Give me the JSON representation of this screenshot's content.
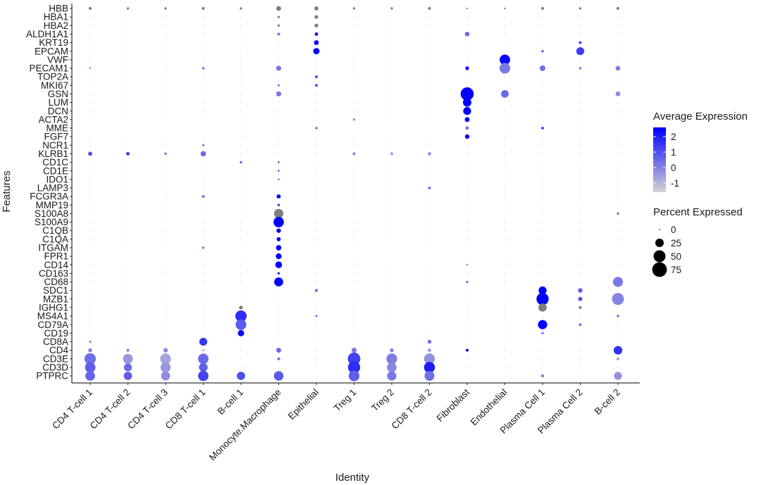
{
  "chart_data": {
    "type": "dotplot",
    "xlabel": "Identity",
    "ylabel": "Features",
    "identities": [
      "CD4 T-cell 1",
      "CD4 T-cell 2",
      "CD4 T-cell 3",
      "CD8 T-cell 1",
      "B-cell 1",
      "Monocyte.Macrophage",
      "Epithelial",
      "Treg 1",
      "Treg 2",
      "CD8 T-cell 2",
      "Fibroblast",
      "Endothelial",
      "Plasma Cell 1",
      "Plasma Cell 2",
      "B-cell 2"
    ],
    "features": [
      "HBB",
      "HBA1",
      "HBA2",
      "ALDH1A1",
      "KRT19",
      "EPCAM",
      "VWF",
      "PECAM1",
      "TOP2A",
      "MKI67",
      "GSN",
      "LUM",
      "DCN",
      "ACTA2",
      "MME",
      "FGF7",
      "NCR1",
      "KLRB1",
      "CD1C",
      "CD1E",
      "IDO1",
      "LAMP3",
      "FCGR3A",
      "MMP19",
      "S100A8",
      "S100A9",
      "C1QB",
      "C1QA",
      "ITGAM",
      "FPR1",
      "CD14",
      "CD163",
      "CD68",
      "SDC1",
      "MZB1",
      "IGHG1",
      "MS4A1",
      "CD79A",
      "CD19",
      "CD8A",
      "CD4",
      "CD3E",
      "CD3D",
      "PTPRC"
    ],
    "points": [
      {
        "f": "HBB",
        "i": "CD4 T-cell 1",
        "pct": 3,
        "avg": null
      },
      {
        "f": "HBB",
        "i": "CD4 T-cell 2",
        "pct": 2,
        "avg": null
      },
      {
        "f": "HBB",
        "i": "CD4 T-cell 3",
        "pct": 2,
        "avg": null
      },
      {
        "f": "HBB",
        "i": "CD8 T-cell 1",
        "pct": 3,
        "avg": null
      },
      {
        "f": "HBB",
        "i": "B-cell 1",
        "pct": 2,
        "avg": null
      },
      {
        "f": "HBB",
        "i": "Monocyte.Macrophage",
        "pct": 8,
        "avg": null
      },
      {
        "f": "HBB",
        "i": "Epithelial",
        "pct": 6,
        "avg": null
      },
      {
        "f": "HBB",
        "i": "Treg 1",
        "pct": 2,
        "avg": null
      },
      {
        "f": "HBB",
        "i": "Treg 2",
        "pct": 2,
        "avg": null
      },
      {
        "f": "HBB",
        "i": "CD8 T-cell 2",
        "pct": 3,
        "avg": null
      },
      {
        "f": "HBB",
        "i": "Fibroblast",
        "pct": 1,
        "avg": null
      },
      {
        "f": "HBB",
        "i": "Endothelial",
        "pct": 1,
        "avg": null
      },
      {
        "f": "HBB",
        "i": "Plasma Cell 1",
        "pct": 3,
        "avg": null
      },
      {
        "f": "HBB",
        "i": "Plasma Cell 2",
        "pct": 2,
        "avg": null
      },
      {
        "f": "HBB",
        "i": "B-cell 2",
        "pct": 3,
        "avg": null
      },
      {
        "f": "HBA1",
        "i": "Monocyte.Macrophage",
        "pct": 2,
        "avg": null
      },
      {
        "f": "HBA1",
        "i": "Epithelial",
        "pct": 5,
        "avg": null
      },
      {
        "f": "HBA2",
        "i": "Monocyte.Macrophage",
        "pct": 2,
        "avg": null
      },
      {
        "f": "HBA2",
        "i": "Epithelial",
        "pct": 5,
        "avg": null
      },
      {
        "f": "ALDH1A1",
        "i": "Monocyte.Macrophage",
        "pct": 3,
        "avg": 0.3
      },
      {
        "f": "ALDH1A1",
        "i": "Epithelial",
        "pct": 4,
        "avg": 2.4
      },
      {
        "f": "ALDH1A1",
        "i": "Fibroblast",
        "pct": 7,
        "avg": 0.6
      },
      {
        "f": "KRT19",
        "i": "Epithelial",
        "pct": 8,
        "avg": 2.6
      },
      {
        "f": "KRT19",
        "i": "Plasma Cell 2",
        "pct": 3,
        "avg": 1.2
      },
      {
        "f": "EPCAM",
        "i": "Epithelial",
        "pct": 14,
        "avg": 2.6
      },
      {
        "f": "EPCAM",
        "i": "Plasma Cell 1",
        "pct": 2,
        "avg": 0.8
      },
      {
        "f": "EPCAM",
        "i": "Plasma Cell 2",
        "pct": 22,
        "avg": 1.4
      },
      {
        "f": "VWF",
        "i": "Endothelial",
        "pct": 38,
        "avg": 2.5
      },
      {
        "f": "PECAM1",
        "i": "CD4 T-cell 1",
        "pct": 1,
        "avg": 0.2
      },
      {
        "f": "PECAM1",
        "i": "CD8 T-cell 1",
        "pct": 2,
        "avg": 0.5
      },
      {
        "f": "PECAM1",
        "i": "Monocyte.Macrophage",
        "pct": 9,
        "avg": 0.2
      },
      {
        "f": "PECAM1",
        "i": "Fibroblast",
        "pct": 5,
        "avg": 2.3
      },
      {
        "f": "PECAM1",
        "i": "Endothelial",
        "pct": 40,
        "avg": 0.2
      },
      {
        "f": "PECAM1",
        "i": "Plasma Cell 1",
        "pct": 11,
        "avg": 0.4
      },
      {
        "f": "PECAM1",
        "i": "Plasma Cell 2",
        "pct": 2,
        "avg": 0.3
      },
      {
        "f": "PECAM1",
        "i": "B-cell 2",
        "pct": 8,
        "avg": 0.1
      },
      {
        "f": "TOP2A",
        "i": "Epithelial",
        "pct": 3,
        "avg": 0.8
      },
      {
        "f": "MKI67",
        "i": "Monocyte.Macrophage",
        "pct": 1,
        "avg": 2.0
      },
      {
        "f": "MKI67",
        "i": "Epithelial",
        "pct": 3,
        "avg": 0.9
      },
      {
        "f": "GSN",
        "i": "Monocyte.Macrophage",
        "pct": 9,
        "avg": 0.2
      },
      {
        "f": "GSN",
        "i": "Fibroblast",
        "pct": 60,
        "avg": 2.6
      },
      {
        "f": "GSN",
        "i": "Endothelial",
        "pct": 20,
        "avg": 0.5
      },
      {
        "f": "GSN",
        "i": "B-cell 2",
        "pct": 8,
        "avg": -0.1
      },
      {
        "f": "LUM",
        "i": "Fibroblast",
        "pct": 25,
        "avg": 2.6
      },
      {
        "f": "DCN",
        "i": "Fibroblast",
        "pct": 22,
        "avg": 2.6
      },
      {
        "f": "ACTA2",
        "i": "Treg 1",
        "pct": 2,
        "avg": -0.3
      },
      {
        "f": "ACTA2",
        "i": "Fibroblast",
        "pct": 8,
        "avg": 2.6
      },
      {
        "f": "MME",
        "i": "Epithelial",
        "pct": 2,
        "avg": 0.5
      },
      {
        "f": "MME",
        "i": "Fibroblast",
        "pct": 4,
        "avg": 0.3
      },
      {
        "f": "MME",
        "i": "Plasma Cell 1",
        "pct": 2,
        "avg": 2.0
      },
      {
        "f": "FGF7",
        "i": "Fibroblast",
        "pct": 7,
        "avg": 2.6
      },
      {
        "f": "NCR1",
        "i": "CD8 T-cell 1",
        "pct": 1,
        "avg": 2.0
      },
      {
        "f": "KLRB1",
        "i": "CD4 T-cell 1",
        "pct": 6,
        "avg": 1.0
      },
      {
        "f": "KLRB1",
        "i": "CD4 T-cell 2",
        "pct": 4,
        "avg": 1.6
      },
      {
        "f": "KLRB1",
        "i": "CD4 T-cell 3",
        "pct": 2,
        "avg": 0.4
      },
      {
        "f": "KLRB1",
        "i": "CD8 T-cell 1",
        "pct": 10,
        "avg": 0.5
      },
      {
        "f": "KLRB1",
        "i": "Treg 1",
        "pct": 3,
        "avg": 0.0
      },
      {
        "f": "KLRB1",
        "i": "Treg 2",
        "pct": 3,
        "avg": -0.5
      },
      {
        "f": "KLRB1",
        "i": "CD8 T-cell 2",
        "pct": 4,
        "avg": -0.3
      },
      {
        "f": "CD1C",
        "i": "B-cell 1",
        "pct": 2,
        "avg": 0.9
      },
      {
        "f": "CD1C",
        "i": "Monocyte.Macrophage",
        "pct": 1,
        "avg": 2.0
      },
      {
        "f": "CD1E",
        "i": "Monocyte.Macrophage",
        "pct": 1,
        "avg": 2.0
      },
      {
        "f": "IDO1",
        "i": "Monocyte.Macrophage",
        "pct": 1,
        "avg": 1.2
      },
      {
        "f": "LAMP3",
        "i": "CD8 T-cell 2",
        "pct": 3,
        "avg": 0.3
      },
      {
        "f": "FCGR3A",
        "i": "CD8 T-cell 1",
        "pct": 3,
        "avg": 0.3
      },
      {
        "f": "FCGR3A",
        "i": "Monocyte.Macrophage",
        "pct": 6,
        "avg": 2.5
      },
      {
        "f": "MMP19",
        "i": "Monocyte.Macrophage",
        "pct": 2,
        "avg": 1.5
      },
      {
        "f": "S100A8",
        "i": "Monocyte.Macrophage",
        "pct": 30,
        "avg": null
      },
      {
        "f": "S100A8",
        "i": "B-cell 2",
        "pct": 2,
        "avg": null
      },
      {
        "f": "S100A9",
        "i": "Monocyte.Macrophage",
        "pct": 38,
        "avg": 2.6
      },
      {
        "f": "C1QB",
        "i": "Monocyte.Macrophage",
        "pct": 7,
        "avg": 2.6
      },
      {
        "f": "C1QA",
        "i": "Monocyte.Macrophage",
        "pct": 6,
        "avg": 2.6
      },
      {
        "f": "ITGAM",
        "i": "CD8 T-cell 1",
        "pct": 2,
        "avg": 0.3
      },
      {
        "f": "ITGAM",
        "i": "Monocyte.Macrophage",
        "pct": 10,
        "avg": 2.5
      },
      {
        "f": "FPR1",
        "i": "Monocyte.Macrophage",
        "pct": 12,
        "avg": 2.5
      },
      {
        "f": "CD14",
        "i": "Monocyte.Macrophage",
        "pct": 16,
        "avg": 2.5
      },
      {
        "f": "CD14",
        "i": "Fibroblast",
        "pct": 1,
        "avg": 0.3
      },
      {
        "f": "CD163",
        "i": "Monocyte.Macrophage",
        "pct": 2,
        "avg": 2.0
      },
      {
        "f": "CD68",
        "i": "Monocyte.Macrophage",
        "pct": 28,
        "avg": 2.5
      },
      {
        "f": "CD68",
        "i": "Fibroblast",
        "pct": 2,
        "avg": 0.2
      },
      {
        "f": "CD68",
        "i": "B-cell 2",
        "pct": 35,
        "avg": 0.2
      },
      {
        "f": "SDC1",
        "i": "Epithelial",
        "pct": 3,
        "avg": 0.5
      },
      {
        "f": "SDC1",
        "i": "Plasma Cell 1",
        "pct": 22,
        "avg": 2.6
      },
      {
        "f": "SDC1",
        "i": "Plasma Cell 2",
        "pct": 7,
        "avg": 0.8
      },
      {
        "f": "MZB1",
        "i": "Plasma Cell 1",
        "pct": 52,
        "avg": 2.6
      },
      {
        "f": "MZB1",
        "i": "Plasma Cell 2",
        "pct": 6,
        "avg": 1.0
      },
      {
        "f": "MZB1",
        "i": "B-cell 2",
        "pct": 50,
        "avg": 0.0
      },
      {
        "f": "IGHG1",
        "i": "B-cell 1",
        "pct": 5,
        "avg": null
      },
      {
        "f": "IGHG1",
        "i": "Plasma Cell 1",
        "pct": 24,
        "avg": null
      },
      {
        "f": "IGHG1",
        "i": "Plasma Cell 2",
        "pct": 3,
        "avg": null
      },
      {
        "f": "MS4A1",
        "i": "B-cell 1",
        "pct": 45,
        "avg": 1.7
      },
      {
        "f": "MS4A1",
        "i": "Epithelial",
        "pct": 1,
        "avg": 2.0
      },
      {
        "f": "MS4A1",
        "i": "B-cell 2",
        "pct": 2,
        "avg": 0.5
      },
      {
        "f": "CD79A",
        "i": "B-cell 1",
        "pct": 40,
        "avg": 0.8
      },
      {
        "f": "CD79A",
        "i": "Plasma Cell 1",
        "pct": 30,
        "avg": 2.6
      },
      {
        "f": "CD79A",
        "i": "Plasma Cell 2",
        "pct": 3,
        "avg": 0.3
      },
      {
        "f": "CD19",
        "i": "B-cell 1",
        "pct": 14,
        "avg": 2.4
      },
      {
        "f": "CD19",
        "i": "Plasma Cell 1",
        "pct": 2,
        "avg": 0.3
      },
      {
        "f": "CD8A",
        "i": "CD4 T-cell 1",
        "pct": 2,
        "avg": -0.2
      },
      {
        "f": "CD8A",
        "i": "CD8 T-cell 1",
        "pct": 22,
        "avg": 1.5
      },
      {
        "f": "CD8A",
        "i": "CD8 T-cell 2",
        "pct": 5,
        "avg": 0.4
      },
      {
        "f": "CD4",
        "i": "CD4 T-cell 1",
        "pct": 5,
        "avg": 0.1
      },
      {
        "f": "CD4",
        "i": "CD4 T-cell 2",
        "pct": 3,
        "avg": 0.1
      },
      {
        "f": "CD4",
        "i": "CD4 T-cell 3",
        "pct": 7,
        "avg": -0.2
      },
      {
        "f": "CD4",
        "i": "CD8 T-cell 1",
        "pct": 1,
        "avg": 0.0
      },
      {
        "f": "CD4",
        "i": "Monocyte.Macrophage",
        "pct": 8,
        "avg": 0.6
      },
      {
        "f": "CD4",
        "i": "Treg 1",
        "pct": 9,
        "avg": 0.2
      },
      {
        "f": "CD4",
        "i": "Treg 2",
        "pct": 5,
        "avg": 0.0
      },
      {
        "f": "CD4",
        "i": "CD8 T-cell 2",
        "pct": 4,
        "avg": -0.4
      },
      {
        "f": "CD4",
        "i": "Fibroblast",
        "pct": 3,
        "avg": 2.4
      },
      {
        "f": "CD4",
        "i": "B-cell 2",
        "pct": 26,
        "avg": 1.6
      },
      {
        "f": "CD3E",
        "i": "CD4 T-cell 1",
        "pct": 45,
        "avg": 0.4
      },
      {
        "f": "CD3E",
        "i": "CD4 T-cell 2",
        "pct": 34,
        "avg": -0.4
      },
      {
        "f": "CD3E",
        "i": "CD4 T-cell 3",
        "pct": 40,
        "avg": -0.7
      },
      {
        "f": "CD3E",
        "i": "CD8 T-cell 1",
        "pct": 38,
        "avg": 0.5
      },
      {
        "f": "CD3E",
        "i": "Monocyte.Macrophage",
        "pct": 3,
        "avg": 0.3
      },
      {
        "f": "CD3E",
        "i": "Treg 1",
        "pct": 55,
        "avg": 1.3
      },
      {
        "f": "CD3E",
        "i": "Treg 2",
        "pct": 40,
        "avg": 0.1
      },
      {
        "f": "CD3E",
        "i": "CD8 T-cell 2",
        "pct": 40,
        "avg": -0.3
      },
      {
        "f": "CD3E",
        "i": "B-cell 2",
        "pct": 3,
        "avg": -0.6
      },
      {
        "f": "CD3D",
        "i": "CD4 T-cell 1",
        "pct": 38,
        "avg": 0.7
      },
      {
        "f": "CD3D",
        "i": "CD4 T-cell 2",
        "pct": 22,
        "avg": 0.5
      },
      {
        "f": "CD3D",
        "i": "CD4 T-cell 3",
        "pct": 36,
        "avg": -0.4
      },
      {
        "f": "CD3D",
        "i": "CD8 T-cell 1",
        "pct": 26,
        "avg": 0.7
      },
      {
        "f": "CD3D",
        "i": "Treg 1",
        "pct": 52,
        "avg": 1.7
      },
      {
        "f": "CD3D",
        "i": "Treg 2",
        "pct": 32,
        "avg": -0.1
      },
      {
        "f": "CD3D",
        "i": "CD8 T-cell 2",
        "pct": 42,
        "avg": 2.0
      },
      {
        "f": "PTPRC",
        "i": "CD4 T-cell 1",
        "pct": 33,
        "avg": 0.6
      },
      {
        "f": "PTPRC",
        "i": "CD4 T-cell 2",
        "pct": 24,
        "avg": 0.7
      },
      {
        "f": "PTPRC",
        "i": "CD4 T-cell 3",
        "pct": 28,
        "avg": -0.2
      },
      {
        "f": "PTPRC",
        "i": "CD8 T-cell 1",
        "pct": 38,
        "avg": 1.2
      },
      {
        "f": "PTPRC",
        "i": "B-cell 1",
        "pct": 24,
        "avg": 1.0
      },
      {
        "f": "PTPRC",
        "i": "Monocyte.Macrophage",
        "pct": 32,
        "avg": 0.8
      },
      {
        "f": "PTPRC",
        "i": "Treg 1",
        "pct": 40,
        "avg": 0.7
      },
      {
        "f": "PTPRC",
        "i": "Treg 2",
        "pct": 30,
        "avg": 0.2
      },
      {
        "f": "PTPRC",
        "i": "CD8 T-cell 2",
        "pct": 34,
        "avg": 0.4
      },
      {
        "f": "PTPRC",
        "i": "Plasma Cell 1",
        "pct": 3,
        "avg": 0.2
      },
      {
        "f": "PTPRC",
        "i": "B-cell 2",
        "pct": 22,
        "avg": -0.3
      }
    ],
    "color_legend": {
      "title": "Average Expression",
      "ticks": [
        2,
        1,
        0,
        -1
      ],
      "range": [
        -1.6,
        2.6
      ],
      "colors": {
        "low": "#d3d3d3",
        "high": "#0000ff",
        "na": "#7f7f7f"
      }
    },
    "size_legend": {
      "title": "Percent Expressed",
      "values": [
        0,
        25,
        50,
        75
      ]
    },
    "axis_text": {
      "pct_ticks": [
        "0",
        "25",
        "50",
        "75"
      ],
      "avg_ticks": [
        "2",
        "1",
        "0",
        "-1"
      ]
    }
  }
}
